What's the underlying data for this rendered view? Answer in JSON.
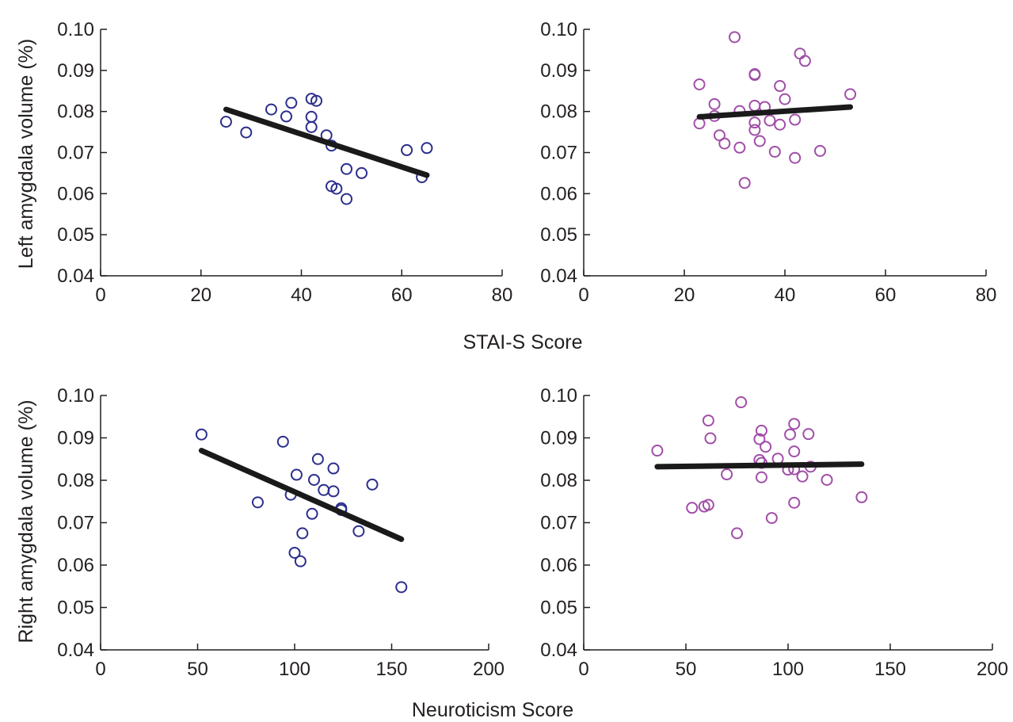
{
  "colors": {
    "group_a": "#2b2e8c",
    "group_b": "#a14ea8",
    "fit_line": "#1a1a1a",
    "axis": "#231f20"
  },
  "labels": {
    "top_xlabel": "STAI-S Score",
    "bottom_xlabel": "Neuroticism Score",
    "top_ylabel": "Left amygdala volume (%)",
    "bottom_ylabel": "Right amygdala volume (%)"
  },
  "chart_data": [
    {
      "id": "top-left",
      "type": "scatter",
      "xlim": [
        0,
        80
      ],
      "ylim": [
        0.04,
        0.1
      ],
      "xticks": [
        0,
        20,
        40,
        60,
        80
      ],
      "yticks": [
        0.04,
        0.05,
        0.06,
        0.07,
        0.08,
        0.09,
        0.1
      ],
      "y_decimals": 2,
      "marker_color": "group_a",
      "points": [
        [
          25,
          0.0775
        ],
        [
          29,
          0.0749
        ],
        [
          34,
          0.0805
        ],
        [
          37,
          0.0788
        ],
        [
          38,
          0.0821
        ],
        [
          42,
          0.0831
        ],
        [
          42,
          0.0787
        ],
        [
          42,
          0.0762
        ],
        [
          43,
          0.0826
        ],
        [
          45,
          0.0742
        ],
        [
          46,
          0.0717
        ],
        [
          46,
          0.0618
        ],
        [
          47,
          0.0612
        ],
        [
          49,
          0.066
        ],
        [
          49,
          0.0587
        ],
        [
          52,
          0.065
        ],
        [
          61,
          0.0706
        ],
        [
          64,
          0.064
        ],
        [
          65,
          0.0711
        ]
      ],
      "fit": [
        [
          25,
          0.0805
        ],
        [
          65,
          0.0645
        ]
      ]
    },
    {
      "id": "top-right",
      "type": "scatter",
      "xlim": [
        0,
        80
      ],
      "ylim": [
        0.04,
        0.1
      ],
      "xticks": [
        0,
        20,
        40,
        60,
        80
      ],
      "yticks": [
        0.04,
        0.05,
        0.06,
        0.07,
        0.08,
        0.09,
        0.1
      ],
      "y_decimals": 2,
      "marker_color": "group_b",
      "points": [
        [
          23,
          0.0866
        ],
        [
          23,
          0.0771
        ],
        [
          26,
          0.0818
        ],
        [
          26,
          0.0789
        ],
        [
          27,
          0.0742
        ],
        [
          28,
          0.0722
        ],
        [
          30,
          0.0981
        ],
        [
          31,
          0.0801
        ],
        [
          31,
          0.0712
        ],
        [
          32,
          0.0626
        ],
        [
          34,
          0.0891
        ],
        [
          34,
          0.0889
        ],
        [
          34,
          0.0814
        ],
        [
          34,
          0.0773
        ],
        [
          34,
          0.0755
        ],
        [
          35,
          0.0728
        ],
        [
          36,
          0.0811
        ],
        [
          37,
          0.0778
        ],
        [
          38,
          0.0702
        ],
        [
          39,
          0.0862
        ],
        [
          39,
          0.0768
        ],
        [
          40,
          0.083
        ],
        [
          42,
          0.078
        ],
        [
          42,
          0.0687
        ],
        [
          43,
          0.0941
        ],
        [
          44,
          0.0923
        ],
        [
          47,
          0.0704
        ],
        [
          53,
          0.0842
        ]
      ],
      "fit": [
        [
          23,
          0.0787
        ],
        [
          53,
          0.0811
        ]
      ]
    },
    {
      "id": "bottom-left",
      "type": "scatter",
      "xlim": [
        0,
        200
      ],
      "ylim": [
        0.04,
        0.1
      ],
      "xticks": [
        0,
        50,
        100,
        150,
        200
      ],
      "yticks": [
        0.04,
        0.05,
        0.06,
        0.07,
        0.08,
        0.09,
        0.1
      ],
      "y_decimals": 2,
      "marker_color": "group_a",
      "points": [
        [
          52,
          0.0908
        ],
        [
          81,
          0.0748
        ],
        [
          94,
          0.0891
        ],
        [
          98,
          0.0766
        ],
        [
          100,
          0.0629
        ],
        [
          101,
          0.0813
        ],
        [
          103,
          0.0609
        ],
        [
          104,
          0.0675
        ],
        [
          109,
          0.0721
        ],
        [
          110,
          0.0801
        ],
        [
          112,
          0.085
        ],
        [
          115,
          0.0777
        ],
        [
          120,
          0.0828
        ],
        [
          120,
          0.0774
        ],
        [
          124,
          0.0734
        ],
        [
          124,
          0.073
        ],
        [
          133,
          0.068
        ],
        [
          140,
          0.079
        ],
        [
          155,
          0.0548
        ]
      ],
      "fit": [
        [
          52,
          0.087
        ],
        [
          155,
          0.0661
        ]
      ]
    },
    {
      "id": "bottom-right",
      "type": "scatter",
      "xlim": [
        0,
        200
      ],
      "ylim": [
        0.04,
        0.1
      ],
      "xticks": [
        0,
        50,
        100,
        150,
        200
      ],
      "yticks": [
        0.04,
        0.05,
        0.06,
        0.07,
        0.08,
        0.09,
        0.1
      ],
      "y_decimals": 2,
      "marker_color": "group_b",
      "points": [
        [
          36,
          0.087
        ],
        [
          53,
          0.0735
        ],
        [
          59,
          0.0738
        ],
        [
          61,
          0.0941
        ],
        [
          61,
          0.0742
        ],
        [
          62,
          0.0899
        ],
        [
          70,
          0.0814
        ],
        [
          75,
          0.0675
        ],
        [
          77,
          0.0984
        ],
        [
          86,
          0.0848
        ],
        [
          86,
          0.0897
        ],
        [
          87,
          0.0917
        ],
        [
          87,
          0.0841
        ],
        [
          87,
          0.0807
        ],
        [
          89,
          0.0879
        ],
        [
          92,
          0.0711
        ],
        [
          95,
          0.0851
        ],
        [
          100,
          0.0825
        ],
        [
          101,
          0.0908
        ],
        [
          103,
          0.0933
        ],
        [
          103,
          0.0868
        ],
        [
          103,
          0.0826
        ],
        [
          103,
          0.0747
        ],
        [
          107,
          0.0809
        ],
        [
          110,
          0.0909
        ],
        [
          111,
          0.0832
        ],
        [
          119,
          0.0801
        ],
        [
          136,
          0.076
        ]
      ],
      "fit": [
        [
          36,
          0.0832
        ],
        [
          136,
          0.0838
        ]
      ]
    }
  ]
}
